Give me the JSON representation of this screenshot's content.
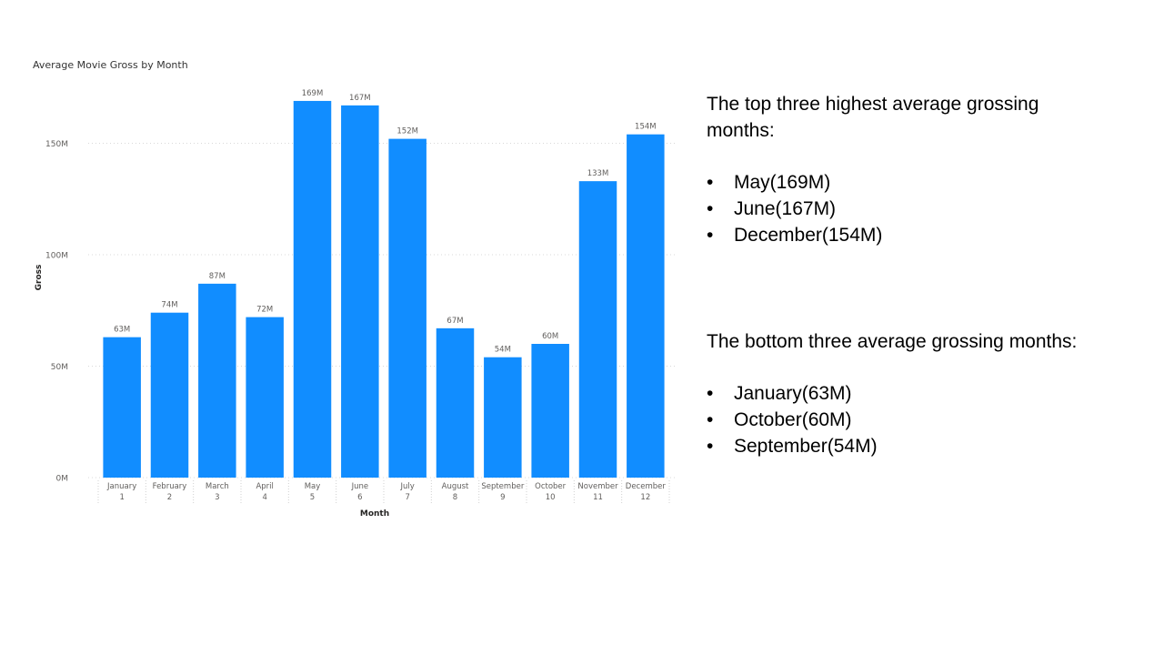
{
  "chart_data": {
    "type": "bar",
    "title": "Average Movie Gross by Month",
    "xlabel": "Month",
    "ylabel": "Gross",
    "categories": [
      "January",
      "February",
      "March",
      "April",
      "May",
      "June",
      "July",
      "August",
      "September",
      "October",
      "November",
      "December"
    ],
    "category_numbers": [
      "1",
      "2",
      "3",
      "4",
      "5",
      "6",
      "7",
      "8",
      "9",
      "10",
      "11",
      "12"
    ],
    "values": [
      63,
      74,
      87,
      72,
      169,
      167,
      152,
      67,
      54,
      60,
      133,
      154
    ],
    "value_labels": [
      "63M",
      "74M",
      "87M",
      "72M",
      "169M",
      "167M",
      "152M",
      "67M",
      "54M",
      "60M",
      "133M",
      "154M"
    ],
    "unit": "M",
    "ylim": [
      0,
      176
    ],
    "yticks": [
      0,
      50,
      100,
      150
    ],
    "ytick_labels": [
      "0M",
      "50M",
      "100M",
      "150M"
    ],
    "grid": true,
    "bar_color": "#118DFF"
  },
  "notes": {
    "top_heading": "The top three highest average grossing months:",
    "top_items": [
      "May(169M)",
      "June(167M)",
      "December(154M)"
    ],
    "bottom_heading": "The bottom three average grossing months:",
    "bottom_items": [
      "January(63M)",
      "October(60M)",
      "September(54M)"
    ],
    "bullet": "•"
  }
}
